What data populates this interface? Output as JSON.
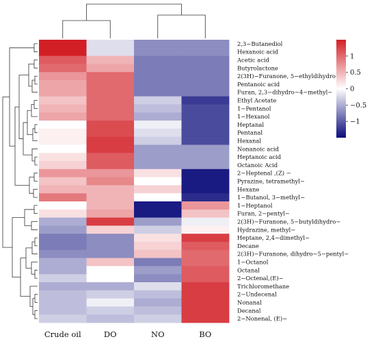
{
  "chart_data": {
    "type": "heatmap",
    "title": "",
    "columns": [
      "Crude oil",
      "DO",
      "NO",
      "BO"
    ],
    "rows": [
      "2,3−Butanediol",
      "Hexanoic acid",
      "Acetic acid",
      "Butyrolactone",
      "2(3H)−Furanone, 5−ethyldihydro−",
      "Pentanoic acid",
      "Furan, 2,3−dihydro−4−methyl−",
      "Ethyl Acetate",
      "1−Pentanol",
      "1−Hexanol",
      "Heptanal",
      "Pentanal",
      "Hexanal",
      "Nonanoic acid",
      "Heptanoic acid",
      "Octanoic Acid",
      "2−Heptenal ,(Z) −",
      "Pyrazine, tetramethyl−",
      "Hexane",
      "1−Butanol, 3−methyl−",
      "1−Heptanol",
      "Furan, 2−pentyl−",
      "2(3H)−Furanone, 5−butyldihydro−",
      "Hydrazine, methyl−",
      "Heptane, 2,4−dimethyl−",
      "Decane",
      "2(3H)−Furanone, dihydro−5−pentyl−",
      "1−Octanol",
      "Octanal",
      "2−Octenal,(E)−",
      "Trichloromethane",
      "2−Undecenal",
      "Nonanal",
      "Decanal",
      "2−Nonenal, (E)−"
    ],
    "values": [
      [
        1.5,
        -0.2,
        -0.7,
        -0.7
      ],
      [
        1.5,
        -0.2,
        -0.7,
        -0.7
      ],
      [
        1.1,
        0.5,
        -0.8,
        -0.8
      ],
      [
        1.0,
        0.6,
        -0.8,
        -0.8
      ],
      [
        0.7,
        1.0,
        -0.8,
        -0.8
      ],
      [
        0.6,
        1.0,
        -0.8,
        -0.8
      ],
      [
        0.6,
        1.0,
        -0.8,
        -0.8
      ],
      [
        0.4,
        1.0,
        -0.3,
        -1.2
      ],
      [
        0.5,
        1.0,
        -0.4,
        -1.1
      ],
      [
        0.6,
        1.0,
        -0.5,
        -1.1
      ],
      [
        0.0,
        1.2,
        -0.1,
        -1.1
      ],
      [
        0.1,
        1.2,
        -0.2,
        -1.1
      ],
      [
        0.1,
        1.3,
        -0.3,
        -1.1
      ],
      [
        0.0,
        1.3,
        -0.6,
        -0.6
      ],
      [
        0.2,
        1.1,
        -0.6,
        -0.6
      ],
      [
        0.3,
        1.1,
        -0.6,
        -0.6
      ],
      [
        0.7,
        0.7,
        0.2,
        -1.4
      ],
      [
        0.4,
        0.8,
        0.0,
        -1.4
      ],
      [
        0.5,
        0.5,
        0.3,
        -1.4
      ],
      [
        0.9,
        0.5,
        0.0,
        -1.3
      ],
      [
        0.0,
        0.5,
        -1.4,
        0.7
      ],
      [
        0.2,
        0.6,
        -1.4,
        0.4
      ],
      [
        -0.5,
        1.3,
        -0.6,
        -0.1
      ],
      [
        -0.6,
        0.3,
        -0.3,
        0.1
      ],
      [
        -0.8,
        -0.7,
        0.2,
        1.3
      ],
      [
        -0.8,
        -0.7,
        0.3,
        1.1
      ],
      [
        -0.7,
        -0.7,
        0.4,
        1.0
      ],
      [
        -0.5,
        0.4,
        -0.8,
        1.0
      ],
      [
        -0.5,
        0.0,
        -0.6,
        1.1
      ],
      [
        -0.3,
        0.0,
        -0.7,
        1.1
      ],
      [
        -0.5,
        -0.5,
        -0.2,
        1.3
      ],
      [
        -0.4,
        -0.3,
        -0.4,
        1.3
      ],
      [
        -0.4,
        -0.1,
        -0.5,
        1.3
      ],
      [
        -0.4,
        -0.3,
        -0.4,
        1.3
      ],
      [
        -0.3,
        -0.4,
        -0.3,
        1.3
      ]
    ],
    "color_scale": {
      "min": -1.5,
      "max": 1.5,
      "low_color": "#0a0a7a",
      "mid_color": "#ffffff",
      "high_color": "#d21f26",
      "ticks": [
        1,
        0.5,
        0,
        -0.5,
        -1
      ],
      "tick_labels": [
        "1",
        "0.5",
        "0",
        "−0.5",
        "−1"
      ]
    },
    "legend_position": "top-right",
    "row_dendrogram": true,
    "column_dendrogram": true
  }
}
